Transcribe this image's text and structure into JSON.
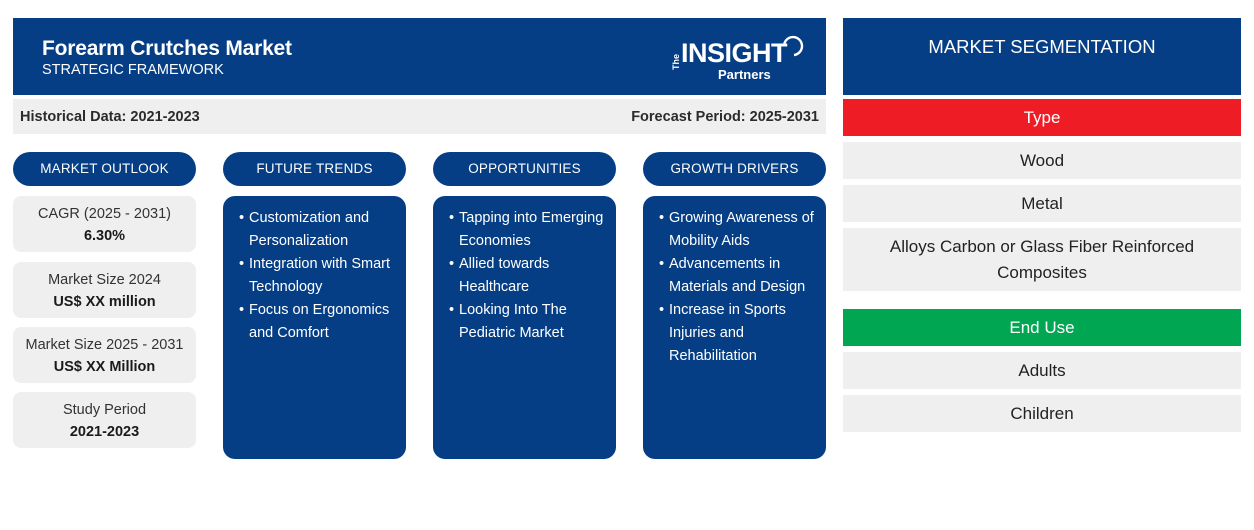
{
  "header": {
    "title": "Forearm Crutches Market",
    "subtitle": "STRATEGIC FRAMEWORK",
    "logo": {
      "the": "The",
      "insight": "INSIGHT",
      "partners": "Partners"
    }
  },
  "periods": {
    "historical": "Historical Data: 2021-2023",
    "forecast": "Forecast Period: 2025-2031"
  },
  "columns": {
    "outlook": "MARKET OUTLOOK",
    "trends": "FUTURE TRENDS",
    "opportunities": "OPPORTUNITIES",
    "drivers": "GROWTH DRIVERS"
  },
  "outlook": [
    {
      "label": "CAGR (2025 - 2031)",
      "value": "6.30%"
    },
    {
      "label": "Market Size 2024",
      "value": "US$ XX million"
    },
    {
      "label": "Market Size 2025 - 2031",
      "value": "US$ XX Million"
    },
    {
      "label": "Study Period",
      "value": "2021-2023"
    }
  ],
  "trends": [
    "Customization and Personalization",
    "Integration with Smart Technology",
    "Focus on Ergonomics and Comfort"
  ],
  "opportunities": [
    "Tapping into Emerging Economies",
    "Allied towards Healthcare",
    "Looking Into The Pediatric Market"
  ],
  "drivers": [
    "Growing Awareness of Mobility Aids",
    "Advancements in Materials and Design",
    "Increase in Sports Injuries and Rehabilitation"
  ],
  "segmentation": {
    "title": "MARKET SEGMENTATION",
    "type_label": "Type",
    "type_color": "#ee1c25",
    "types": [
      "Wood",
      "Metal",
      "Alloys Carbon or Glass Fiber Reinforced Composites"
    ],
    "enduse_label": "End Use",
    "enduse_color": "#00a651",
    "enduses": [
      "Adults",
      "Children"
    ]
  },
  "colors": {
    "navy": "#053e85",
    "light_gray": "#efefef"
  }
}
